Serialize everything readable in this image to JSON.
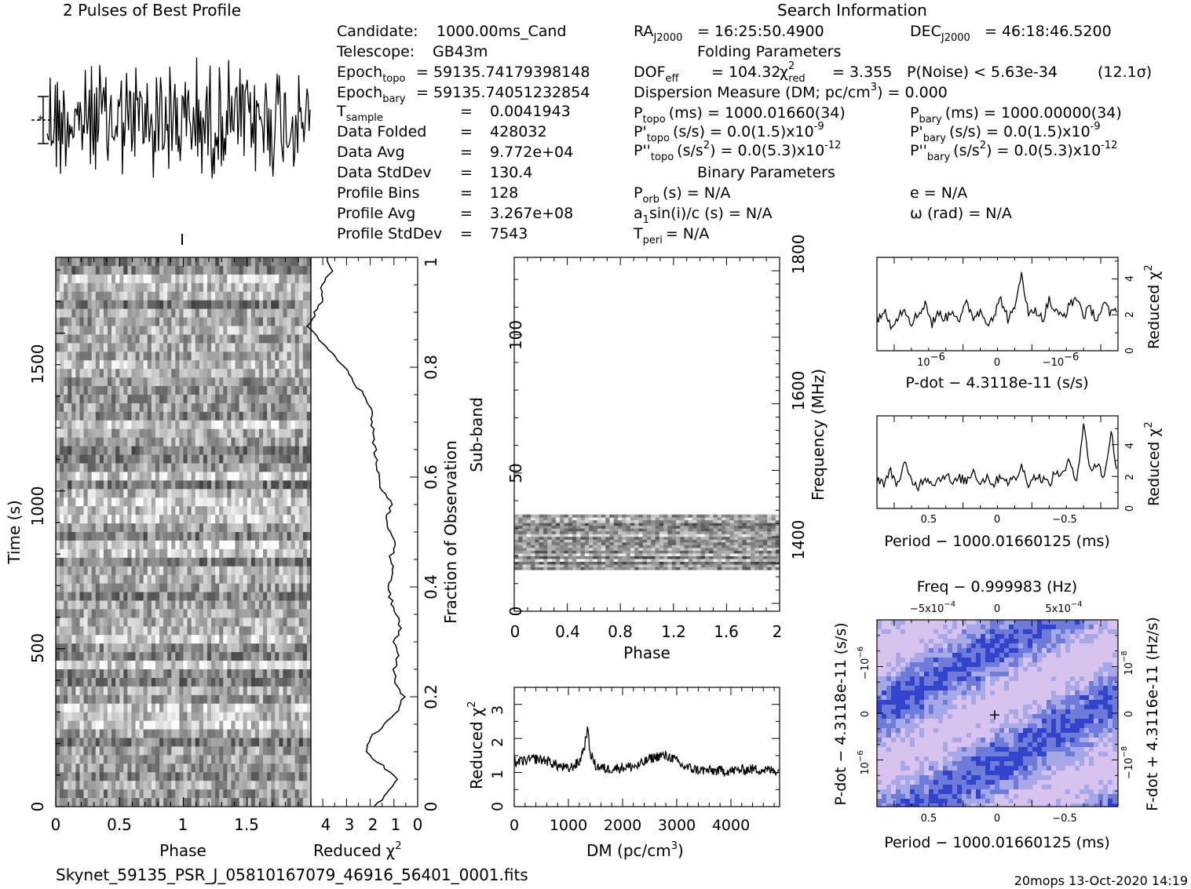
{
  "profile_title": "2 Pulses of Best Profile",
  "search_title": "Search Information",
  "candidate_info": [
    {
      "label": "Candidate:",
      "value": "1000.00ms_Cand"
    },
    {
      "label": "Telescope:",
      "value": "GB43m"
    },
    {
      "label": "Epoch",
      "sub": "topo",
      "value": "= 59135.74179398148"
    },
    {
      "label": "Epoch",
      "sub": "bary",
      "value": "= 59135.74051232854"
    },
    {
      "label": "T",
      "sub": "sample",
      "value": "0.0041943"
    },
    {
      "label": "Data Folded",
      "value": "428032"
    },
    {
      "label": "Data Avg",
      "value": "9.772e+04"
    },
    {
      "label": "Data StdDev",
      "value": "130.4"
    },
    {
      "label": "Profile Bins",
      "value": "128"
    },
    {
      "label": "Profile Avg",
      "value": "3.267e+08"
    },
    {
      "label": "Profile StdDev",
      "value": "7543"
    }
  ],
  "equals_sign": "=",
  "search_info": {
    "ra_label": "RA",
    "ra_sub": "J2000",
    "ra_value": "= 16:25:50.4900",
    "dec_label": "DEC",
    "dec_sub": "J2000",
    "dec_value": "= 46:18:46.5200",
    "folding_heading": "Folding Parameters",
    "dof_label": "DOF",
    "dof_sub": "eff",
    "dof_value": "= 104.32",
    "chi_label": "χ",
    "chi_sup": "2",
    "chi_sub": "red",
    "chi_value": "= 3.355",
    "noise": "P(Noise) < 5.63e-34",
    "sigma": "(12.1σ)",
    "dm_line": "Dispersion Measure (DM; pc/cm",
    "dm_sup": "3",
    "dm_value": ") = 0.000",
    "ptopo_label": "P",
    "ptopo_sub": "topo",
    "ptopo_value": "(ms) = 1000.01660(34)",
    "pbary_label": "P",
    "pbary_sub": "bary",
    "pbary_value": "(ms) = 1000.00000(34)",
    "pdtopo_label": "P'",
    "pdtopo_sub": "topo",
    "pdtopo_value": "(s/s) = 0.0(1.5)x10",
    "pdtopo_exp": "-9",
    "pdbary_label": "P'",
    "pdbary_sub": "bary",
    "pdbary_value": "(s/s) = 0.0(1.5)x10",
    "pdbary_exp": "-9",
    "pddtopo_label": "P''",
    "pddtopo_sub": "topo",
    "pddtopo_value": "(s/s",
    "pddtopo_sup2": "2",
    "pddtopo_value2": ") = 0.0(5.3)x10",
    "pddtopo_exp": "-12",
    "pddbary_label": "P''",
    "pddbary_sub": "bary",
    "pddbary_value": "(s/s",
    "pddbary_sup2": "2",
    "pddbary_value2": ") = 0.0(5.3)x10",
    "pddbary_exp": "-12",
    "binary_heading": "Binary Parameters",
    "porb_label": "P",
    "porb_sub": "orb",
    "porb_value": "(s) = N/A",
    "e_value": "e = N/A",
    "asini_label": "a",
    "asini_sub": "1",
    "asini_value": "sin(i)/c (s) = N/A",
    "omega_value": "ω (rad) = N/A",
    "tperi_label": "T",
    "tperi_sub": "peri",
    "tperi_value": "= N/A"
  },
  "footer": {
    "filename": "Skynet_59135_PSR_J_05810167079_46916_56401_0001.fits",
    "stamp": "20mops 13-Oct-2020 14:19"
  },
  "chart_data": [
    {
      "type": "line",
      "name": "profile",
      "title": "2 Pulses of Best Profile",
      "series": [
        {
          "name": "profile",
          "description": "noise-like folded profile, two pulses of phase 0-2, 256 bins"
        }
      ]
    },
    {
      "type": "heatmap",
      "name": "time-phase",
      "xlabel": "Phase",
      "ylabel": "Time (s)",
      "xlim": [
        0,
        2
      ],
      "ylim": [
        0,
        1740
      ],
      "xticks": [
        "0",
        "0.5",
        "1",
        "1.5"
      ],
      "yticks": [
        "0",
        "500",
        "1000",
        "1500"
      ]
    },
    {
      "type": "line",
      "name": "chi2-vs-fraction",
      "xlabel": "Reduced",
      "xlabel_sym": "χ",
      "xlabel_sup": "2",
      "ylabel": "Fraction of Observation",
      "xlim": [
        4.5,
        0
      ],
      "ylim": [
        0,
        1
      ],
      "xticks": [
        "4",
        "3",
        "2",
        "1",
        "0"
      ],
      "yticks": [
        "0",
        "0.2",
        "0.4",
        "0.6",
        "0.8",
        "1"
      ],
      "fraction": [
        0,
        0.025,
        0.05,
        0.075,
        0.1,
        0.125,
        0.15,
        0.175,
        0.2,
        0.225,
        0.25,
        0.275,
        0.3,
        0.325,
        0.35,
        0.375,
        0.4,
        0.425,
        0.45,
        0.475,
        0.5,
        0.525,
        0.55,
        0.575,
        0.6,
        0.625,
        0.65,
        0.675,
        0.7,
        0.725,
        0.75,
        0.775,
        0.8,
        0.825,
        0.85,
        0.875,
        0.9,
        0.925,
        0.95,
        0.975,
        1
      ],
      "chi2": [
        1.8,
        1.3,
        0.9,
        1.5,
        2.2,
        2.0,
        1.4,
        0.8,
        0.6,
        0.9,
        1.0,
        0.8,
        1.0,
        0.7,
        0.9,
        1.1,
        1.3,
        1.0,
        1.2,
        0.9,
        1.2,
        1.3,
        1.1,
        1.5,
        1.6,
        1.7,
        1.8,
        1.9,
        1.9,
        2.0,
        2.3,
        2.7,
        3.1,
        3.6,
        4.2,
        4.6,
        4.3,
        4.0,
        4.1,
        3.6,
        3.8
      ]
    },
    {
      "type": "heatmap",
      "name": "subband-phase",
      "xlabel": "Phase",
      "ylabel": "Sub-band",
      "right_label": "Frequency (MHz)",
      "xlim": [
        0,
        2
      ],
      "ylim": [
        0,
        128
      ],
      "xticks": [
        "0",
        "0.4",
        "0.8",
        "1.2",
        "1.6",
        "2"
      ],
      "yticks": [
        "0",
        "50",
        "100"
      ],
      "right_ticks": [
        "1400",
        "1600",
        "1800"
      ],
      "filled_subbands": [
        15,
        35
      ]
    },
    {
      "type": "line",
      "name": "dm-chi2",
      "xlabel": "DM (pc/cm",
      "xlabel_sup": "3",
      "xlabel_end": ")",
      "ylabel": "Reduced",
      "ylabel_sym": "χ",
      "ylabel_sup": "2",
      "xlim": [
        0,
        4900
      ],
      "ylim": [
        0,
        3.5
      ],
      "xticks": [
        "0",
        "1000",
        "2000",
        "3000",
        "4000"
      ],
      "yticks": [
        "0",
        "1",
        "2",
        "3"
      ],
      "dm": [
        0,
        200,
        400,
        600,
        800,
        1000,
        1200,
        1300,
        1350,
        1400,
        1500,
        1700,
        2000,
        2300,
        2500,
        2700,
        2900,
        3100,
        3300,
        3600,
        4000,
        4400,
        4900
      ],
      "chi2": [
        1.3,
        1.35,
        1.4,
        1.35,
        1.2,
        1.1,
        1.3,
        1.8,
        2.3,
        1.6,
        1.2,
        1.1,
        1.15,
        1.2,
        1.4,
        1.5,
        1.45,
        1.2,
        1.1,
        1.05,
        1.05,
        1.1,
        1.05
      ]
    },
    {
      "type": "line",
      "name": "pdot-chi2",
      "xlabel": "P-dot − 4.3118e-11 (s/s)",
      "ylabel": "Reduced",
      "ylabel_sym": "χ",
      "ylabel_sup": "2",
      "xticks": [
        "10",
        "0",
        "−10"
      ],
      "xtick_exp": [
        "−6",
        "",
        "−6"
      ],
      "yticks": [
        "0",
        "2",
        "4"
      ],
      "ylim": [
        0,
        5.2
      ],
      "y": [
        1.8,
        2.2,
        1.5,
        1.9,
        2.4,
        1.6,
        2.0,
        2.7,
        1.5,
        2.1,
        1.8,
        2.3,
        1.7,
        2.6,
        1.9,
        2.2,
        1.6,
        2.0,
        2.9,
        1.8,
        2.2,
        4.5,
        1.9,
        2.4,
        1.7,
        2.8,
        2.1,
        1.9,
        2.5,
        3.0,
        2.0,
        2.3,
        1.8,
        2.6,
        2.0,
        2.4
      ]
    },
    {
      "type": "line",
      "name": "period-chi2",
      "xlabel": "Period − 1000.01660125 (ms)",
      "ylabel": "Reduced",
      "ylabel_sym": "χ",
      "ylabel_sup": "2",
      "xticks": [
        "0.5",
        "0",
        "−0.5"
      ],
      "yticks": [
        "0",
        "2",
        "4"
      ],
      "ylim": [
        0,
        5.8
      ],
      "y": [
        1.9,
        1.6,
        2.3,
        1.5,
        2.8,
        1.7,
        1.4,
        2.0,
        1.6,
        1.8,
        2.2,
        1.5,
        1.9,
        1.7,
        2.4,
        1.6,
        2.0,
        1.5,
        2.1,
        1.7,
        1.8,
        2.6,
        1.6,
        2.0,
        1.9,
        1.5,
        2.3,
        2.1,
        3.0,
        1.8,
        5.2,
        2.4,
        2.8,
        1.9,
        4.9,
        1.8
      ]
    },
    {
      "type": "heatmap",
      "name": "p-pdot",
      "title": "Freq − 0.999983 (Hz)",
      "xlabel": "Period − 1000.01660125 (ms)",
      "ylabel": "P-dot − 4.3118e-11 (s/s)",
      "right_label": "F-dot + 4.3116e-11 (Hz/s)",
      "xticks": [
        "0.5",
        "0",
        "−0.5"
      ],
      "top_ticks": [
        "−5x10",
        "0",
        "5x10"
      ],
      "top_exp": [
        "−4",
        "",
        "−4"
      ],
      "left_ticks": [
        "−10",
        "0",
        "10"
      ],
      "left_exp": [
        "−6",
        "",
        "−6"
      ],
      "right_ticks": [
        "10",
        "0",
        "−10"
      ],
      "right_exp": [
        "−8",
        "",
        "−8"
      ],
      "marker": "+",
      "colors": [
        "#3344cc",
        "#6f7bd8",
        "#a6a8e8",
        "#d7c3ee"
      ]
    }
  ]
}
